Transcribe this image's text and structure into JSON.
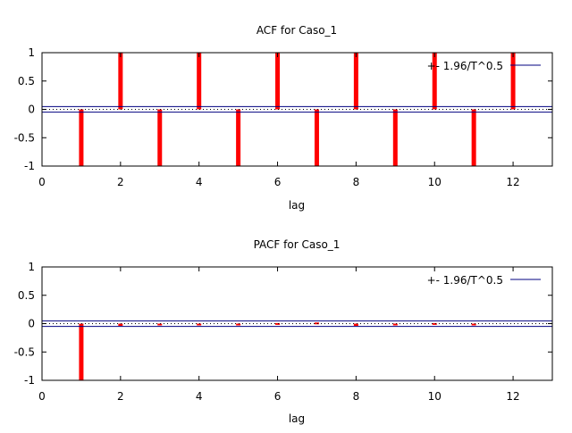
{
  "chart_data": [
    {
      "type": "bar",
      "title": "ACF for Caso_1",
      "xlabel": "lag",
      "ylabel": "",
      "xlim": [
        0,
        13
      ],
      "ylim": [
        -1,
        1
      ],
      "x_ticks": [
        0,
        2,
        4,
        6,
        8,
        10,
        12
      ],
      "y_ticks": [
        -1,
        -0.5,
        0,
        0.5,
        1
      ],
      "grid": false,
      "legend_position": "top-right",
      "series": [
        {
          "name": "ACF",
          "color": "#ff0000",
          "lags": [
            1,
            2,
            3,
            4,
            5,
            6,
            7,
            8,
            9,
            10,
            11,
            12
          ],
          "values": [
            -1,
            1,
            -1,
            1,
            -1,
            1,
            -1,
            1,
            -1,
            1,
            -1,
            1
          ]
        }
      ],
      "confidence_band": {
        "label": "+- 1.96/T^0.5",
        "value": 0.05,
        "color": "#000080"
      }
    },
    {
      "type": "bar",
      "title": "PACF for Caso_1",
      "xlabel": "lag",
      "ylabel": "",
      "xlim": [
        0,
        13
      ],
      "ylim": [
        -1,
        1
      ],
      "x_ticks": [
        0,
        2,
        4,
        6,
        8,
        10,
        12
      ],
      "y_ticks": [
        -1,
        -0.5,
        0,
        0.5,
        1
      ],
      "grid": false,
      "legend_position": "top-right",
      "series": [
        {
          "name": "PACF",
          "color": "#ff0000",
          "lags": [
            1,
            2,
            3,
            4,
            5,
            6,
            7,
            8,
            9,
            10,
            11
          ],
          "values": [
            -1,
            -0.04,
            0,
            -0.02,
            0,
            0.01,
            0.02,
            -0.04,
            -0.03,
            0.01,
            -0.03
          ]
        }
      ],
      "confidence_band": {
        "label": "+- 1.96/T^0.5",
        "value": 0.05,
        "color": "#000080"
      }
    }
  ]
}
